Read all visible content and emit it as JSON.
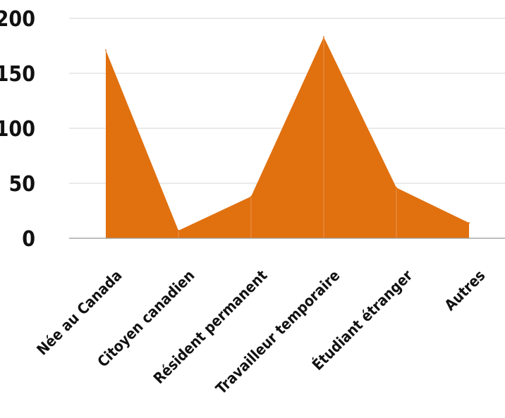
{
  "chart_data": {
    "type": "area",
    "categories": [
      "Née au Canada",
      "Citoyen canadien",
      "Résident permanent",
      "Travailleur temporaire",
      "Étudiant étranger",
      "Autres"
    ],
    "series": [
      {
        "values": [
          171,
          7,
          38,
          183,
          46,
          14
        ]
      }
    ],
    "ylim": [
      0,
      200
    ],
    "yticks": [
      0,
      50,
      100,
      150,
      200
    ],
    "grid": true,
    "legend": "none",
    "colors": {
      "fill": "#e1700f",
      "grid": "#d6d6d6",
      "axis": "#999999",
      "text": "#111111"
    }
  }
}
